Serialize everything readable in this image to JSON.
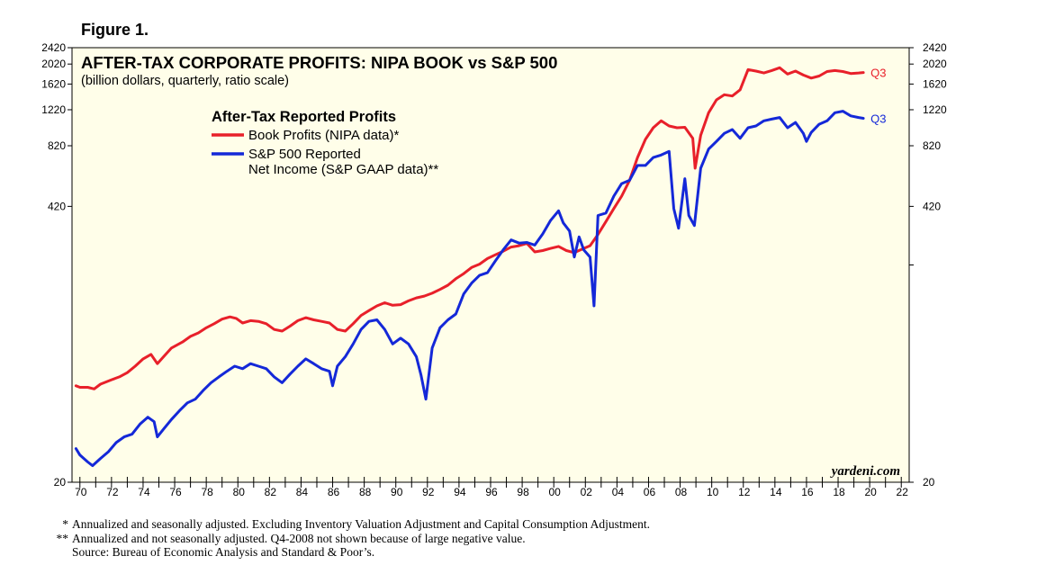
{
  "figure_label": "Figure 1.",
  "chart_data": {
    "type": "line",
    "title": "AFTER-TAX CORPORATE PROFITS: NIPA BOOK vs S&P 500",
    "subtitle": "(billion dollars, quarterly, ratio scale)",
    "legend_title": "After-Tax Reported Profits",
    "scale": "log",
    "ylim": [
      20,
      2420
    ],
    "xlim": [
      1969.5,
      2022.5
    ],
    "y_ticks": [
      2420,
      2020,
      1620,
      1220,
      820,
      420,
      20
    ],
    "y_tick_labels": [
      "2420",
      "2020",
      "1620",
      "1220",
      "820",
      "420",
      "20"
    ],
    "x_tick_labels": [
      "70",
      "72",
      "74",
      "76",
      "78",
      "80",
      "82",
      "84",
      "86",
      "88",
      "90",
      "92",
      "94",
      "96",
      "98",
      "00",
      "02",
      "04",
      "06",
      "08",
      "10",
      "12",
      "14",
      "16",
      "18",
      "20",
      "22"
    ],
    "x_tick_years": [
      1970,
      1972,
      1974,
      1976,
      1978,
      1980,
      1982,
      1984,
      1986,
      1988,
      1990,
      1992,
      1994,
      1996,
      1998,
      2000,
      2002,
      2004,
      2006,
      2008,
      2010,
      2012,
      2014,
      2016,
      2018,
      2020,
      2022
    ],
    "series": [
      {
        "name": "Book Profits (NIPA data)*",
        "color": "#e8202a",
        "end_label": "Q3",
        "x": [
          1969.75,
          1970.0,
          1970.5,
          1970.9,
          1971.3,
          1972.0,
          1972.5,
          1973.0,
          1973.5,
          1974.0,
          1974.5,
          1974.9,
          1975.3,
          1975.8,
          1976.5,
          1977.0,
          1977.5,
          1978.0,
          1978.5,
          1979.0,
          1979.5,
          1979.9,
          1980.3,
          1980.8,
          1981.3,
          1981.8,
          1982.3,
          1982.8,
          1983.3,
          1983.8,
          1984.3,
          1984.8,
          1985.3,
          1985.8,
          1986.3,
          1986.8,
          1987.3,
          1987.8,
          1988.3,
          1988.8,
          1989.3,
          1989.8,
          1990.3,
          1990.8,
          1991.3,
          1991.8,
          1992.3,
          1992.8,
          1993.3,
          1993.8,
          1994.3,
          1994.8,
          1995.3,
          1995.8,
          1996.3,
          1996.8,
          1997.3,
          1997.8,
          1998.3,
          1998.8,
          1999.3,
          1999.8,
          2000.3,
          2000.8,
          2001.3,
          2001.8,
          2002.3,
          2002.8,
          2003.3,
          2003.8,
          2004.3,
          2004.8,
          2005.3,
          2005.8,
          2006.3,
          2006.8,
          2007.3,
          2007.8,
          2008.3,
          2008.8,
          2008.95,
          2009.3,
          2009.8,
          2010.3,
          2010.8,
          2011.3,
          2011.8,
          2012.3,
          2012.8,
          2013.3,
          2013.8,
          2014.3,
          2014.8,
          2015.3,
          2015.8,
          2016.3,
          2016.8,
          2017.3,
          2017.8,
          2018.3,
          2018.8,
          2019.3,
          2019.6
        ],
        "values": [
          58,
          57,
          57,
          56,
          59,
          62,
          64,
          67,
          72,
          78,
          82,
          74,
          80,
          88,
          94,
          100,
          104,
          110,
          115,
          121,
          124,
          122,
          116,
          119,
          118,
          115,
          108,
          106,
          112,
          119,
          123,
          120,
          118,
          116,
          108,
          106,
          115,
          126,
          133,
          140,
          145,
          141,
          142,
          148,
          153,
          156,
          161,
          168,
          176,
          189,
          200,
          214,
          222,
          236,
          246,
          256,
          268,
          272,
          279,
          254,
          258,
          264,
          270,
          258,
          252,
          262,
          272,
          308,
          355,
          410,
          470,
          560,
          720,
          880,
          1000,
          1080,
          1020,
          1000,
          1005,
          890,
          640,
          920,
          1180,
          1360,
          1440,
          1420,
          1520,
          1900,
          1870,
          1830,
          1880,
          1940,
          1810,
          1870,
          1790,
          1730,
          1770,
          1860,
          1880,
          1860,
          1820,
          1830,
          1840
        ]
      },
      {
        "name": "S&P 500 Reported Net Income (S&P GAAP data)**",
        "color": "#1428d8",
        "end_label": "Q3",
        "x": [
          1969.75,
          1970.0,
          1970.5,
          1970.8,
          1971.3,
          1971.8,
          1972.3,
          1972.8,
          1973.3,
          1973.8,
          1974.3,
          1974.7,
          1974.9,
          1975.3,
          1975.8,
          1976.3,
          1976.8,
          1977.3,
          1977.8,
          1978.3,
          1978.8,
          1979.3,
          1979.8,
          1980.3,
          1980.8,
          1981.3,
          1981.8,
          1982.3,
          1982.8,
          1983.3,
          1983.8,
          1984.3,
          1984.8,
          1985.3,
          1985.8,
          1986.0,
          1986.3,
          1986.8,
          1987.3,
          1987.8,
          1988.3,
          1988.8,
          1989.3,
          1989.8,
          1990.3,
          1990.8,
          1991.3,
          1991.6,
          1991.9,
          1992.3,
          1992.8,
          1993.3,
          1993.8,
          1994.3,
          1994.8,
          1995.3,
          1995.8,
          1996.3,
          1996.8,
          1997.3,
          1997.8,
          1998.3,
          1998.8,
          1999.3,
          1999.8,
          2000.3,
          2000.6,
          2001.0,
          2001.3,
          2001.6,
          2001.9,
          2002.3,
          2002.55,
          2002.8,
          2003.3,
          2003.8,
          2004.3,
          2004.8,
          2005.3,
          2005.8,
          2006.3,
          2006.8,
          2007.3,
          2007.6,
          2007.9,
          2008.3,
          2008.55,
          2008.9,
          2009.3,
          2009.8,
          2010.3,
          2010.8,
          2011.3,
          2011.8,
          2012.3,
          2012.8,
          2013.3,
          2013.8,
          2014.3,
          2014.8,
          2015.3,
          2015.8,
          2016.0,
          2016.3,
          2016.8,
          2017.3,
          2017.8,
          2018.3,
          2018.8,
          2019.3,
          2019.6
        ],
        "values": [
          29,
          27,
          25,
          24,
          26,
          28,
          31,
          33,
          34,
          38,
          41,
          39,
          33,
          36,
          40,
          44,
          48,
          50,
          55,
          60,
          64,
          68,
          72,
          70,
          74,
          72,
          70,
          64,
          60,
          66,
          72,
          78,
          74,
          70,
          68,
          58,
          72,
          80,
          92,
          108,
          118,
          120,
          108,
          92,
          98,
          92,
          80,
          65,
          50,
          88,
          110,
          120,
          128,
          160,
          180,
          196,
          202,
          230,
          260,
          290,
          280,
          282,
          274,
          310,
          360,
          400,
          350,
          320,
          240,
          300,
          260,
          240,
          140,
          380,
          390,
          470,
          540,
          560,
          660,
          660,
          720,
          740,
          770,
          410,
          330,
          570,
          380,
          340,
          640,
          790,
          860,
          940,
          980,
          890,
          1000,
          1020,
          1080,
          1100,
          1120,
          1000,
          1060,
          940,
          860,
          950,
          1040,
          1080,
          1180,
          1200,
          1140,
          1120,
          1110
        ]
      }
    ],
    "watermark": "yardeni.com"
  },
  "footnotes": [
    {
      "mark": "*",
      "text": "Annualized and seasonally adjusted. Excluding Inventory Valuation Adjustment and Capital Consumption Adjustment."
    },
    {
      "mark": "**",
      "text": "Annualized and not seasonally adjusted. Q4-2008 not shown because of large negative value."
    },
    {
      "mark": "",
      "text": "Source: Bureau of Economic Analysis and Standard & Poor’s."
    }
  ]
}
